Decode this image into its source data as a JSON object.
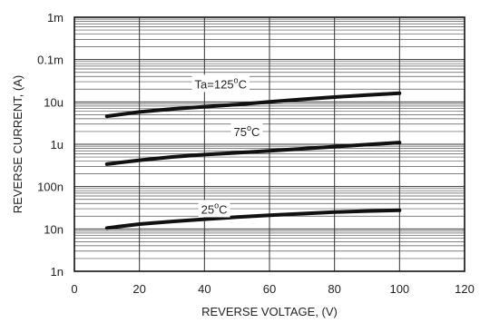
{
  "chart_data": {
    "type": "line",
    "xlabel": "REVERSE VOLTAGE, (V)",
    "ylabel": "REVERSE CURRENT, (A)",
    "xlim": [
      0,
      120
    ],
    "ylim": [
      1e-09,
      0.001
    ],
    "yscale": "log",
    "grid": true,
    "x_ticks": [
      {
        "value": 0,
        "label": "0"
      },
      {
        "value": 20,
        "label": "20"
      },
      {
        "value": 40,
        "label": "40"
      },
      {
        "value": 60,
        "label": "60"
      },
      {
        "value": 80,
        "label": "80"
      },
      {
        "value": 100,
        "label": "100"
      },
      {
        "value": 120,
        "label": "120"
      }
    ],
    "y_ticks": [
      {
        "value": 1e-09,
        "label": "1n"
      },
      {
        "value": 1e-08,
        "label": "10n"
      },
      {
        "value": 1e-07,
        "label": "100n"
      },
      {
        "value": 1e-06,
        "label": "1u"
      },
      {
        "value": 1e-05,
        "label": "10u"
      },
      {
        "value": 0.0001,
        "label": "0.1m"
      },
      {
        "value": 0.001,
        "label": "1m"
      }
    ],
    "series": [
      {
        "label_text": "Ta=125",
        "label_sup": "o",
        "label_unit": "C",
        "label_at": {
          "x": 45,
          "y": 2.1e-05
        },
        "x": [
          10,
          20,
          30,
          40,
          50,
          60,
          70,
          80,
          90,
          100
        ],
        "y": [
          4.6e-06,
          5.8e-06,
          6.8e-06,
          7.7e-06,
          8.7e-06,
          1e-05,
          1.15e-05,
          1.3e-05,
          1.45e-05,
          1.6e-05
        ]
      },
      {
        "label_text": "75",
        "label_sup": "o",
        "label_unit": "C",
        "label_at": {
          "x": 53,
          "y": 1.55e-06
        },
        "x": [
          10,
          20,
          30,
          40,
          50,
          60,
          70,
          80,
          90,
          100
        ],
        "y": [
          3.4e-07,
          4.2e-07,
          5e-07,
          5.7e-07,
          6.3e-07,
          7e-07,
          7.8e-07,
          8.8e-07,
          9.8e-07,
          1.1e-06
        ]
      },
      {
        "label_text": "25",
        "label_sup": "o",
        "label_unit": "C",
        "label_at": {
          "x": 43,
          "y": 2.3e-08
        },
        "x": [
          10,
          20,
          30,
          40,
          50,
          60,
          70,
          80,
          90,
          100
        ],
        "y": [
          1.05e-08,
          1.3e-08,
          1.5e-08,
          1.7e-08,
          1.9e-08,
          2.1e-08,
          2.3e-08,
          2.5e-08,
          2.65e-08,
          2.75e-08
        ]
      }
    ]
  }
}
